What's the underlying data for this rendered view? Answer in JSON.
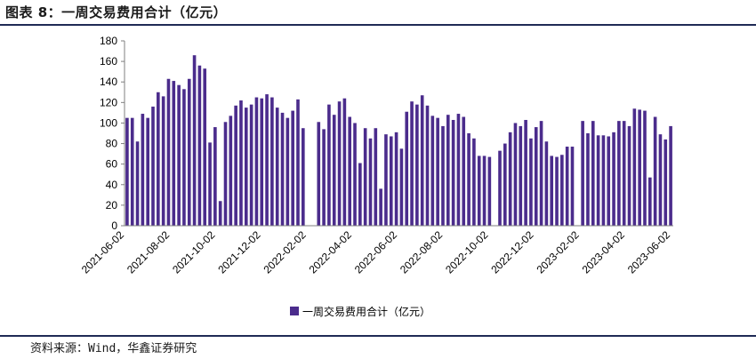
{
  "title": "图表 8：一周交易费用合计（亿元）",
  "source": "资料来源：Wind，华鑫证券研究",
  "colors": {
    "bar": "#4b2c8c",
    "rule": "#1f2a55",
    "axis": "#7f7f7f"
  },
  "chart_data": {
    "type": "bar",
    "ylim": [
      0,
      180
    ],
    "yticks": [
      0,
      20,
      40,
      60,
      80,
      100,
      120,
      140,
      160,
      180
    ],
    "xtick_labels": [
      "2021-06-02",
      "2021-08-02",
      "2021-10-02",
      "2021-12-02",
      "2022-02-02",
      "2022-04-02",
      "2022-06-02",
      "2022-08-02",
      "2022-10-02",
      "2022-12-02",
      "2023-02-02",
      "2023-04-02",
      "2023-06-02"
    ],
    "legend": "一周交易费用合计（亿元）",
    "legend_position": "bottom-center",
    "series": [
      {
        "name": "一周交易费用合计（亿元）",
        "values": [
          105,
          105,
          82,
          109,
          105,
          116,
          130,
          126,
          143,
          141,
          137,
          133,
          143,
          166,
          156,
          153,
          81,
          96,
          24,
          101,
          107,
          117,
          122,
          115,
          118,
          125,
          124,
          128,
          125,
          115,
          110,
          105,
          112,
          123,
          95,
          null,
          null,
          101,
          94,
          118,
          108,
          121,
          124,
          106,
          100,
          61,
          95,
          85,
          95,
          36,
          89,
          87,
          91,
          75,
          111,
          121,
          118,
          127,
          117,
          107,
          105,
          97,
          108,
          103,
          109,
          106,
          90,
          85,
          68,
          68,
          67,
          null,
          73,
          80,
          91,
          100,
          97,
          103,
          85,
          96,
          102,
          82,
          68,
          67,
          69,
          77,
          77,
          null,
          102,
          90,
          102,
          88,
          88,
          87,
          91,
          102,
          102,
          97,
          114,
          113,
          112,
          47,
          106,
          89,
          84,
          97
        ]
      }
    ]
  }
}
